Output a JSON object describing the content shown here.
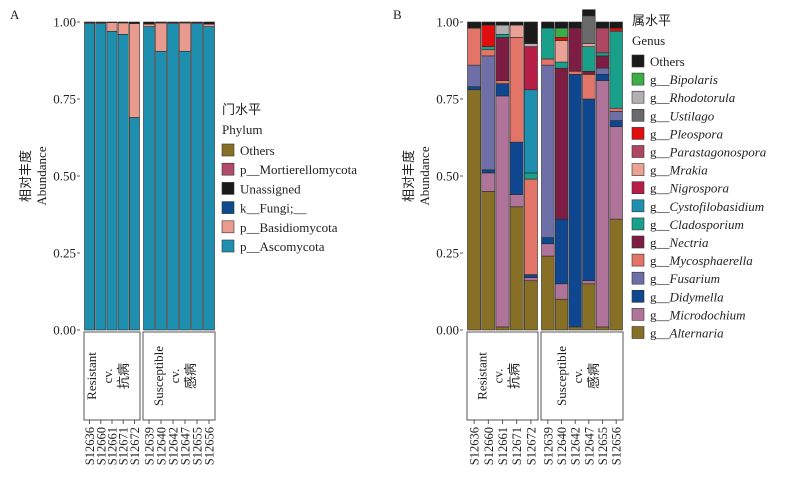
{
  "chart_data": [
    {
      "panel": "A",
      "type": "bar",
      "stacked": true,
      "ylabel_zh": "相对丰度",
      "ylabel": "Abundance",
      "ylim": [
        0,
        1
      ],
      "yticks": [
        "0.00",
        "0.25",
        "0.50",
        "0.75",
        "1.00"
      ],
      "legend_title_zh": "门水平",
      "legend_title": "Phylum",
      "legend_italic": false,
      "groups": [
        {
          "label": "Resistant",
          "sub": "cv.",
          "zh": "抗病",
          "samples": [
            "S12636",
            "S12660",
            "S12661",
            "S12671",
            "S12672"
          ]
        },
        {
          "label": "Susceptible",
          "sub": "cv.",
          "zh": "感病",
          "samples": [
            "S12639",
            "S12640",
            "S12642",
            "S12647",
            "S12655",
            "S12656"
          ]
        }
      ],
      "series": [
        {
          "name": "p__Ascomycota",
          "color": "#1f8fb0",
          "values": [
            0.995,
            0.995,
            0.97,
            0.96,
            0.69,
            0.985,
            0.905,
            0.995,
            0.905,
            0.995,
            0.985
          ]
        },
        {
          "name": "p__Basidiomycota",
          "color": "#e99b90",
          "values": [
            0.003,
            0.003,
            0.028,
            0.037,
            0.305,
            0.008,
            0.092,
            0.003,
            0.092,
            0.003,
            0.008
          ]
        },
        {
          "name": "k__Fungi;__",
          "color": "#0f4a8c",
          "values": [
            0,
            0,
            0,
            0,
            0,
            0,
            0,
            0,
            0,
            0,
            0
          ]
        },
        {
          "name": "Unassigned",
          "color": "#1a1a1a",
          "values": [
            0.002,
            0.002,
            0.002,
            0.003,
            0.005,
            0.007,
            0.003,
            0.002,
            0.003,
            0.002,
            0.007
          ]
        },
        {
          "name": "p__Mortierellomycota",
          "color": "#b24b6a",
          "values": [
            0,
            0,
            0,
            0,
            0,
            0,
            0,
            0,
            0,
            0,
            0
          ]
        },
        {
          "name": "Others",
          "color": "#876f26",
          "values": [
            0,
            0,
            0,
            0,
            0,
            0,
            0,
            0,
            0,
            0,
            0
          ]
        }
      ],
      "legend_order": [
        "Others",
        "p__Mortierellomycota",
        "Unassigned",
        "k__Fungi;__",
        "p__Basidiomycota",
        "p__Ascomycota"
      ]
    },
    {
      "panel": "B",
      "type": "bar",
      "stacked": true,
      "ylabel_zh": "相对丰度",
      "ylabel": "Abundance",
      "ylim": [
        0,
        1
      ],
      "yticks": [
        "0.00",
        "0.25",
        "0.50",
        "0.75",
        "1.00"
      ],
      "legend_title_zh": "属水平",
      "legend_title": "Genus",
      "legend_italic": true,
      "groups": [
        {
          "label": "Resistant",
          "sub": "cv.",
          "zh": "抗病",
          "samples": [
            "S12636",
            "S12660",
            "S12661",
            "S12671",
            "S12672"
          ]
        },
        {
          "label": "Susceptible",
          "sub": "cv.",
          "zh": "感病",
          "samples": [
            "S12639",
            "S12640",
            "S12642",
            "S12647",
            "S12655",
            "S12656"
          ]
        }
      ],
      "series": [
        {
          "name": "g__Alternaria",
          "color": "#876f26",
          "values": [
            0.78,
            0.45,
            0.01,
            0.4,
            0.16,
            0.24,
            0.1,
            0.01,
            0.15,
            0.01,
            0.36
          ]
        },
        {
          "name": "g__Microdochium",
          "color": "#b07399",
          "values": [
            0,
            0.06,
            0.75,
            0.04,
            0.01,
            0.04,
            0.05,
            0,
            0.01,
            0.8,
            0.3
          ]
        },
        {
          "name": "g__Didymella",
          "color": "#0e468f",
          "values": [
            0.01,
            0.01,
            0.04,
            0.17,
            0.01,
            0.02,
            0.21,
            0.82,
            0.59,
            0.02,
            0.02
          ]
        },
        {
          "name": "g__Fusarium",
          "color": "#6f6fa8",
          "values": [
            0.07,
            0.37,
            0,
            0,
            0,
            0.56,
            0,
            0,
            0,
            0.02,
            0.03
          ]
        },
        {
          "name": "g__Mycosphaerella",
          "color": "#e37468",
          "values": [
            0.12,
            0.02,
            0.01,
            0.34,
            0.31,
            0.02,
            0,
            0.01,
            0.08,
            0,
            0.01
          ]
        },
        {
          "name": "g__Nectria",
          "color": "#7d1d43",
          "values": [
            0,
            0,
            0.14,
            0,
            0,
            0,
            0.49,
            0.14,
            0.01,
            0.04,
            0
          ]
        },
        {
          "name": "g__Cladosporium",
          "color": "#18a08a",
          "values": [
            0,
            0.01,
            0.01,
            0,
            0.02,
            0.1,
            0.02,
            0,
            0.08,
            0.01,
            0.25
          ]
        },
        {
          "name": "g__Cystofilobasidium",
          "color": "#1f8fb0",
          "values": [
            0,
            0,
            0,
            0,
            0.27,
            0,
            0,
            0,
            0,
            0,
            0
          ]
        },
        {
          "name": "g__Nigrospora",
          "color": "#b81d45",
          "values": [
            0,
            0,
            0,
            0,
            0.14,
            0,
            0,
            0,
            0,
            0,
            0
          ]
        },
        {
          "name": "g__Mrakia",
          "color": "#eaa295",
          "values": [
            0,
            0,
            0,
            0.04,
            0,
            0,
            0.07,
            0,
            0.01,
            0,
            0
          ]
        },
        {
          "name": "g__Parastagonospora",
          "color": "#ae4762",
          "values": [
            0,
            0,
            0,
            0,
            0,
            0,
            0,
            0,
            0,
            0.08,
            0
          ]
        },
        {
          "name": "g__Pleospora",
          "color": "#e00e0e",
          "values": [
            0,
            0.07,
            0,
            0,
            0,
            0,
            0.01,
            0,
            0,
            0,
            0.01
          ]
        },
        {
          "name": "g__Ustilago",
          "color": "#6a6a6a",
          "values": [
            0,
            0,
            0,
            0,
            0,
            0,
            0,
            0,
            0.09,
            0,
            0
          ]
        },
        {
          "name": "g__Rhodotorula",
          "color": "#b3aeb2",
          "values": [
            0,
            0,
            0.03,
            0,
            0.01,
            0,
            0,
            0,
            0,
            0,
            0
          ]
        },
        {
          "name": "g__Bipolaris",
          "color": "#3cae48",
          "values": [
            0,
            0,
            0,
            0,
            0,
            0,
            0.03,
            0,
            0,
            0,
            0
          ]
        },
        {
          "name": "Others",
          "color": "#1a1a1a",
          "values": [
            0.02,
            0.01,
            0.01,
            0.01,
            0.07,
            0.02,
            0.02,
            0.02,
            0.02,
            0.02,
            0.02
          ]
        }
      ],
      "legend_order": [
        "Others",
        "g__Bipolaris",
        "g__Rhodotorula",
        "g__Ustilago",
        "g__Pleospora",
        "g__Parastagonospora",
        "g__Mrakia",
        "g__Nigrospora",
        "g__Cystofilobasidium",
        "g__Cladosporium",
        "g__Nectria",
        "g__Mycosphaerella",
        "g__Fusarium",
        "g__Didymella",
        "g__Microdochium",
        "g__Alternaria"
      ]
    }
  ]
}
